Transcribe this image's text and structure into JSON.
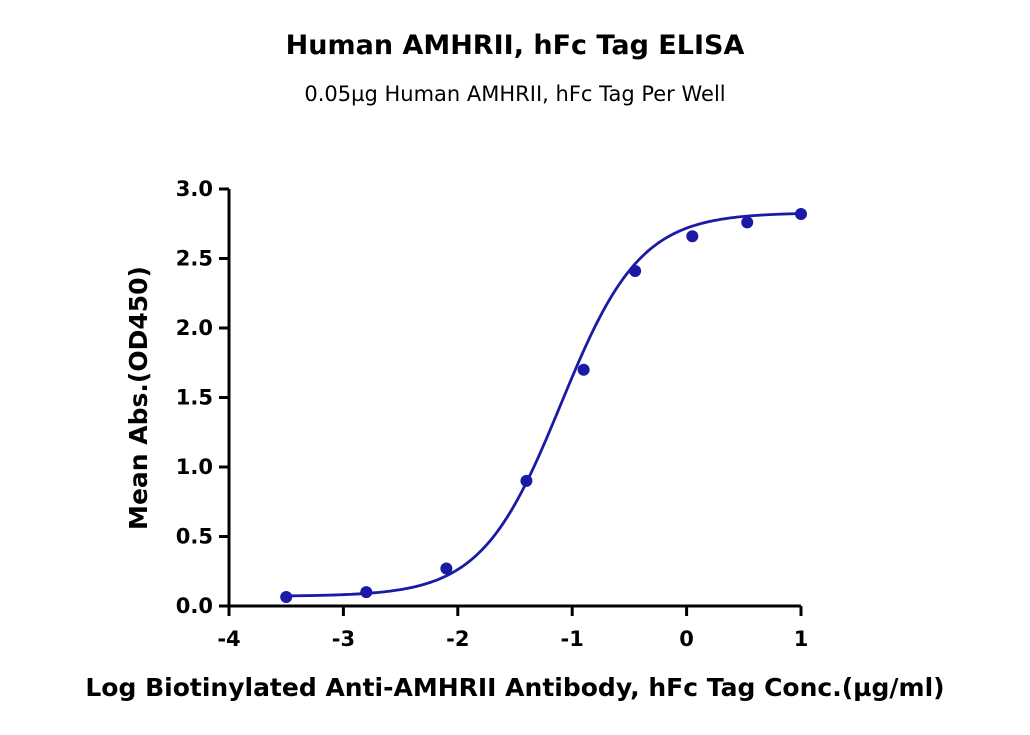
{
  "chart_data": {
    "type": "scatter",
    "title": "Human AMHRII, hFc Tag ELISA",
    "subtitle": "0.05µg Human AMHRII, hFc Tag Per Well",
    "xlabel": "Log Biotinylated Anti-AMHRII Antibody, hFc Tag Conc.(µg/ml)",
    "ylabel": "Mean Abs.(OD450)",
    "xlim": [
      -4,
      1
    ],
    "ylim": [
      0,
      3
    ],
    "x_ticks": [
      -4,
      -3,
      -2,
      -1,
      0,
      1
    ],
    "x_tick_labels": [
      "-4",
      "-3",
      "-2",
      "-1",
      "0",
      "1"
    ],
    "y_ticks": [
      0,
      0.5,
      1,
      1.5,
      2,
      2.5,
      3
    ],
    "y_tick_labels": [
      "0.0",
      "0.5",
      "1.0",
      "1.5",
      "2.0",
      "2.5",
      "3.0"
    ],
    "grid": false,
    "legend": "none",
    "series": [
      {
        "color": "#1a1aa6",
        "x": [
          -3.5,
          -2.8,
          -2.1,
          -1.4,
          -0.9,
          -0.45,
          0.05,
          0.53,
          1.0
        ],
        "y": [
          0.065,
          0.1,
          0.27,
          0.9,
          1.7,
          2.41,
          2.66,
          2.76,
          2.82
        ],
        "fit": {
          "model": "4PL",
          "bottom": 0.07,
          "top": 2.83,
          "logEC50": -1.1,
          "hill": 1.25
        }
      }
    ]
  }
}
